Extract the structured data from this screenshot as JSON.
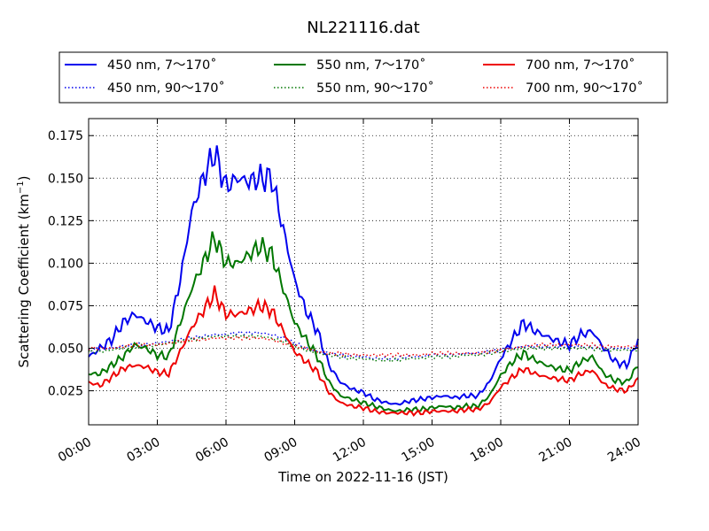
{
  "chart_data": {
    "type": "line",
    "title": "NL221116.dat",
    "xlabel": "Time on 2022-11-16 (JST)",
    "ylabel_main": "Scattering Coefficient (km",
    "ylabel_sup": "−1",
    "ylabel_close": ")",
    "xlim": [
      0,
      24
    ],
    "ylim": [
      0.005,
      0.185
    ],
    "x_ticks": [
      0,
      3,
      6,
      9,
      12,
      15,
      18,
      21,
      24
    ],
    "x_tick_labels": [
      "00:00",
      "03:00",
      "06:00",
      "09:00",
      "12:00",
      "15:00",
      "18:00",
      "21:00",
      "24:00"
    ],
    "y_ticks": [
      0.025,
      0.05,
      0.075,
      0.1,
      0.125,
      0.15,
      0.175
    ],
    "y_tick_labels": [
      "0.025",
      "0.050",
      "0.075",
      "0.100",
      "0.125",
      "0.150",
      "0.175"
    ],
    "grid": true,
    "legend_position": "top, above plot",
    "x_hours": [
      0,
      0.5,
      1,
      1.5,
      2,
      2.5,
      3,
      3.5,
      4,
      4.5,
      5,
      5.5,
      6,
      6.5,
      7,
      7.5,
      8,
      8.5,
      9,
      9.5,
      10,
      10.5,
      11,
      11.5,
      12,
      12.5,
      13,
      13.5,
      14,
      14.5,
      15,
      15.5,
      16,
      16.5,
      17,
      17.5,
      18,
      18.5,
      19,
      19.5,
      20,
      20.5,
      21,
      21.5,
      22,
      22.5,
      23,
      23.5,
      24
    ],
    "series": [
      {
        "name": "450 nm, 7～170˚",
        "color": "#0000ee",
        "style": "solid",
        "values": [
          0.045,
          0.05,
          0.055,
          0.065,
          0.07,
          0.066,
          0.062,
          0.06,
          0.09,
          0.13,
          0.15,
          0.165,
          0.145,
          0.15,
          0.148,
          0.15,
          0.15,
          0.12,
          0.09,
          0.072,
          0.06,
          0.04,
          0.03,
          0.026,
          0.024,
          0.02,
          0.018,
          0.017,
          0.019,
          0.02,
          0.021,
          0.022,
          0.021,
          0.022,
          0.022,
          0.03,
          0.044,
          0.055,
          0.065,
          0.06,
          0.057,
          0.054,
          0.052,
          0.058,
          0.06,
          0.05,
          0.042,
          0.04,
          0.055
        ]
      },
      {
        "name": "450 nm, 90～170˚",
        "color": "#0000ee",
        "style": "dotted",
        "values": [
          0.049,
          0.05,
          0.05,
          0.051,
          0.052,
          0.052,
          0.053,
          0.054,
          0.055,
          0.056,
          0.057,
          0.058,
          0.058,
          0.059,
          0.059,
          0.059,
          0.058,
          0.056,
          0.053,
          0.05,
          0.048,
          0.047,
          0.046,
          0.045,
          0.045,
          0.044,
          0.044,
          0.044,
          0.045,
          0.045,
          0.046,
          0.046,
          0.046,
          0.047,
          0.047,
          0.048,
          0.049,
          0.05,
          0.051,
          0.051,
          0.051,
          0.051,
          0.051,
          0.051,
          0.051,
          0.05,
          0.05,
          0.05,
          0.05
        ]
      },
      {
        "name": "550 nm, 7～170˚",
        "color": "#007700",
        "style": "solid",
        "values": [
          0.035,
          0.035,
          0.04,
          0.045,
          0.052,
          0.05,
          0.046,
          0.045,
          0.065,
          0.085,
          0.1,
          0.115,
          0.1,
          0.1,
          0.105,
          0.11,
          0.105,
          0.085,
          0.065,
          0.055,
          0.045,
          0.03,
          0.022,
          0.02,
          0.018,
          0.016,
          0.014,
          0.013,
          0.014,
          0.014,
          0.015,
          0.016,
          0.015,
          0.016,
          0.016,
          0.022,
          0.034,
          0.042,
          0.047,
          0.043,
          0.04,
          0.038,
          0.037,
          0.042,
          0.045,
          0.035,
          0.031,
          0.03,
          0.04
        ]
      },
      {
        "name": "550 nm, 90～170˚",
        "color": "#007700",
        "style": "dotted",
        "values": [
          0.048,
          0.048,
          0.049,
          0.05,
          0.051,
          0.051,
          0.052,
          0.053,
          0.054,
          0.055,
          0.056,
          0.057,
          0.057,
          0.057,
          0.057,
          0.057,
          0.056,
          0.054,
          0.051,
          0.049,
          0.047,
          0.046,
          0.045,
          0.044,
          0.044,
          0.043,
          0.043,
          0.043,
          0.044,
          0.044,
          0.045,
          0.045,
          0.045,
          0.046,
          0.046,
          0.047,
          0.048,
          0.049,
          0.05,
          0.05,
          0.05,
          0.05,
          0.05,
          0.05,
          0.05,
          0.049,
          0.049,
          0.049,
          0.049
        ]
      },
      {
        "name": "700 nm, 7～170˚",
        "color": "#ee0000",
        "style": "solid",
        "values": [
          0.03,
          0.028,
          0.033,
          0.038,
          0.04,
          0.039,
          0.036,
          0.035,
          0.048,
          0.062,
          0.072,
          0.082,
          0.07,
          0.07,
          0.072,
          0.075,
          0.072,
          0.06,
          0.048,
          0.042,
          0.036,
          0.024,
          0.018,
          0.016,
          0.015,
          0.013,
          0.012,
          0.012,
          0.012,
          0.012,
          0.013,
          0.013,
          0.013,
          0.014,
          0.014,
          0.018,
          0.027,
          0.033,
          0.038,
          0.035,
          0.033,
          0.032,
          0.031,
          0.035,
          0.037,
          0.029,
          0.026,
          0.025,
          0.032
        ]
      },
      {
        "name": "700 nm, 90～170˚",
        "color": "#ee0000",
        "style": "dotted",
        "values": [
          0.05,
          0.05,
          0.05,
          0.051,
          0.052,
          0.052,
          0.052,
          0.053,
          0.054,
          0.055,
          0.055,
          0.056,
          0.056,
          0.056,
          0.056,
          0.056,
          0.055,
          0.053,
          0.051,
          0.05,
          0.048,
          0.047,
          0.047,
          0.046,
          0.046,
          0.046,
          0.046,
          0.046,
          0.046,
          0.046,
          0.047,
          0.047,
          0.047,
          0.047,
          0.047,
          0.048,
          0.049,
          0.05,
          0.051,
          0.052,
          0.052,
          0.052,
          0.052,
          0.052,
          0.052,
          0.051,
          0.051,
          0.051,
          0.051
        ]
      }
    ]
  }
}
